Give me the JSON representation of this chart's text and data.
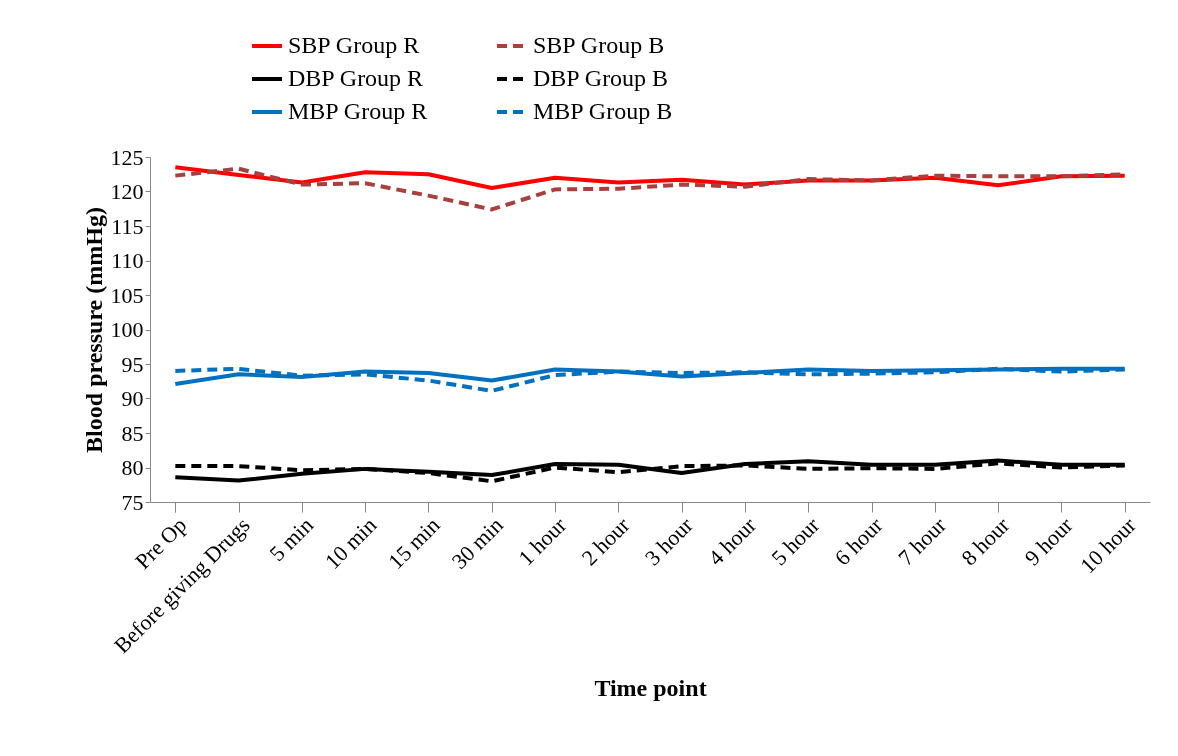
{
  "chart_data": {
    "type": "line",
    "xlabel": "Time point",
    "ylabel": "Blood pressure (mmHg)",
    "categories": [
      "Pre Op",
      "Before giving Drugs",
      "5 min",
      "10 min",
      "15 min",
      "30 min",
      "1 hour",
      "2 hour",
      "3 hour",
      "4 hour",
      "5 hour",
      "6 hour",
      "7 hour",
      "8 hour",
      "9 hour",
      "10 hour"
    ],
    "series": [
      {
        "name": "SBP Group R",
        "color": "#ff0000",
        "line_style": "solid",
        "values": [
          123.5,
          122.4,
          121.3,
          122.8,
          122.5,
          120.5,
          122.0,
          121.3,
          121.7,
          121.0,
          121.6,
          121.6,
          122.0,
          120.9,
          122.2,
          122.3
        ]
      },
      {
        "name": "SBP Group B",
        "color": "#a9403d",
        "line_style": "dashed",
        "values": [
          122.3,
          123.3,
          121.0,
          121.2,
          119.4,
          117.4,
          120.3,
          120.4,
          121.0,
          120.7,
          121.8,
          121.6,
          122.3,
          122.2,
          122.2,
          122.5
        ]
      },
      {
        "name": "DBP Group R",
        "color": "#000000",
        "line_style": "solid",
        "values": [
          78.6,
          78.1,
          79.1,
          79.8,
          79.4,
          78.9,
          80.5,
          80.4,
          79.2,
          80.5,
          80.9,
          80.4,
          80.4,
          81.0,
          80.4,
          80.4
        ]
      },
      {
        "name": "DBP Group B",
        "color": "#000000",
        "line_style": "dashed",
        "values": [
          80.2,
          80.2,
          79.6,
          79.8,
          79.2,
          78.0,
          80.0,
          79.3,
          80.2,
          80.3,
          79.8,
          79.9,
          79.8,
          80.6,
          80.0,
          80.3
        ]
      },
      {
        "name": "MBP Group R",
        "color": "#0070c0",
        "line_style": "solid",
        "values": [
          92.1,
          93.5,
          93.1,
          93.9,
          93.7,
          92.6,
          94.2,
          93.9,
          93.2,
          93.7,
          94.2,
          94.0,
          94.1,
          94.2,
          94.3,
          94.3
        ]
      },
      {
        "name": "MBP Group B",
        "color": "#0070c0",
        "line_style": "dashed",
        "values": [
          94.0,
          94.3,
          93.3,
          93.5,
          92.6,
          91.1,
          93.4,
          93.9,
          93.7,
          93.8,
          93.5,
          93.6,
          93.8,
          94.3,
          93.9,
          94.2
        ]
      }
    ],
    "ylim": [
      75,
      125
    ],
    "yticks": [
      75,
      80,
      85,
      90,
      95,
      100,
      105,
      110,
      115,
      120,
      125
    ],
    "grid": false,
    "legend": "top",
    "marker": "none"
  }
}
